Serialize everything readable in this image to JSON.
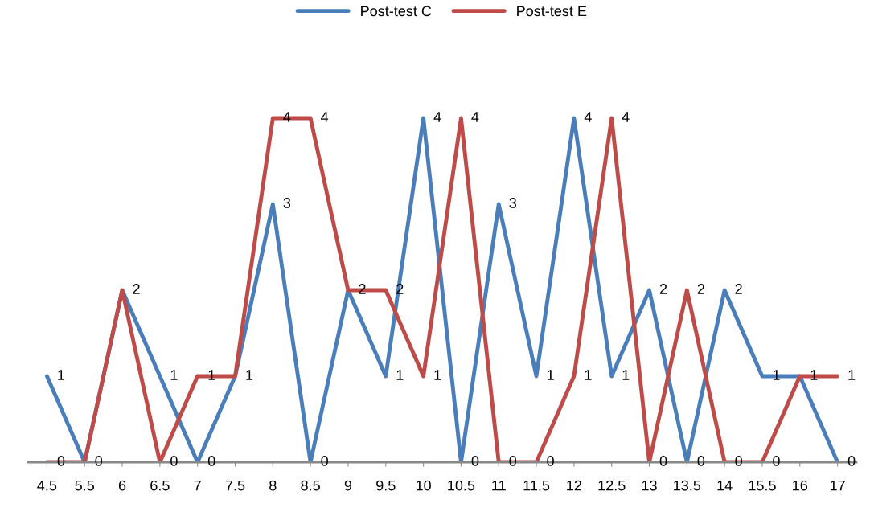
{
  "chart_data": {
    "type": "line",
    "categories": [
      "4.5",
      "5.5",
      "6",
      "6.5",
      "7",
      "7.5",
      "8",
      "8.5",
      "9",
      "9.5",
      "10",
      "10.5",
      "11",
      "11.5",
      "12",
      "12.5",
      "13",
      "13.5",
      "14",
      "15.5",
      "16",
      "17"
    ],
    "series": [
      {
        "name": "Post-test C",
        "color": "#4a7ebb",
        "values": [
          1,
          0,
          2,
          1,
          0,
          1,
          3,
          0,
          2,
          1,
          4,
          0,
          3,
          1,
          4,
          1,
          2,
          0,
          2,
          1,
          1,
          0
        ]
      },
      {
        "name": "Post-test E",
        "color": "#be4b48",
        "values": [
          0,
          0,
          2,
          0,
          1,
          1,
          4,
          4,
          2,
          2,
          1,
          4,
          0,
          0,
          1,
          4,
          0,
          2,
          0,
          0,
          1,
          1
        ],
        "value_labels": [
          "0",
          null,
          null,
          "0",
          "1",
          null,
          "4",
          "4",
          null,
          "2",
          "1",
          "4",
          "0",
          "0",
          "1",
          "4",
          "0",
          "2",
          "0",
          "0",
          null,
          "1"
        ]
      }
    ],
    "data_labels": true,
    "legend": "top",
    "grid": false,
    "marker": "none",
    "line_style": "solid"
  }
}
